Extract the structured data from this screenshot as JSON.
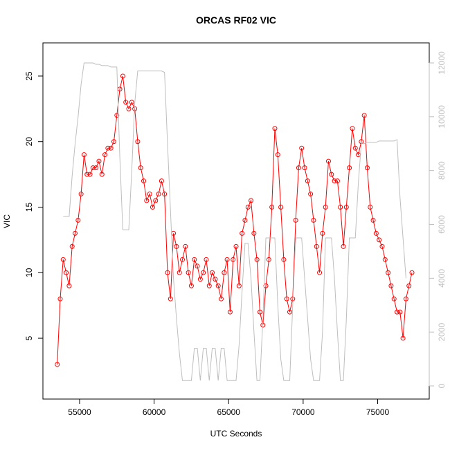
{
  "chart_data": {
    "type": "line",
    "title": "ORCAS RF02 VIC",
    "x_label": "UTC Seconds",
    "y_label": "VIC",
    "x": [
      53500,
      53700,
      53900,
      54100,
      54300,
      54500,
      54700,
      54900,
      55100,
      55300,
      55500,
      55700,
      55900,
      56100,
      56300,
      56500,
      56700,
      56900,
      57100,
      57300,
      57500,
      57700,
      57900,
      58100,
      58300,
      58500,
      58700,
      58900,
      59100,
      59300,
      59500,
      59700,
      59900,
      60100,
      60300,
      60500,
      60700,
      60900,
      61100,
      61300,
      61500,
      61700,
      61900,
      62100,
      62300,
      62500,
      62700,
      62900,
      63100,
      63300,
      63500,
      63700,
      63900,
      64100,
      64300,
      64500,
      64700,
      64900,
      65100,
      65300,
      65500,
      65700,
      65900,
      66100,
      66300,
      66500,
      66700,
      66900,
      67100,
      67300,
      67500,
      67700,
      67900,
      68100,
      68300,
      68500,
      68700,
      68900,
      69100,
      69300,
      69500,
      69700,
      69900,
      70100,
      70300,
      70500,
      70700,
      70900,
      71100,
      71300,
      71500,
      71700,
      71900,
      72100,
      72300,
      72500,
      72700,
      72900,
      73100,
      73300,
      73500,
      73700,
      73900,
      74100,
      74300,
      74500,
      74700,
      74900,
      75100,
      75300,
      75500,
      75700,
      75900,
      76100,
      76300,
      76500,
      76700,
      76900,
      77100,
      77300
    ],
    "series": [
      {
        "color": "#ff0000",
        "axis": "y",
        "markers": true,
        "values": [
          3,
          8,
          11,
          10,
          9,
          12,
          13,
          14,
          16,
          19,
          17.5,
          17.5,
          18,
          18,
          18.5,
          17.5,
          19,
          19.5,
          19.5,
          20,
          22,
          24,
          25,
          23,
          22.5,
          23,
          22.5,
          20,
          18,
          17,
          15.5,
          16,
          15,
          15.5,
          16,
          17,
          16,
          10,
          8,
          13,
          12,
          10,
          11,
          12,
          10,
          9,
          11,
          10.5,
          9.5,
          10,
          11,
          9,
          10,
          9.5,
          9,
          8,
          10,
          11,
          7,
          11,
          12,
          9,
          13,
          14,
          15,
          15.5,
          13,
          11,
          7,
          6,
          9,
          11,
          15,
          21,
          19,
          15,
          11,
          8,
          7,
          8,
          14,
          18,
          19.5,
          18,
          17,
          16,
          14,
          12,
          10,
          13,
          15,
          18.5,
          17.5,
          17,
          17,
          15,
          12,
          15,
          18,
          21,
          19.5,
          19,
          20,
          22,
          18,
          15,
          14,
          13,
          12.5,
          12,
          11,
          10,
          9,
          8,
          7,
          7,
          5,
          8,
          9,
          10
        ]
      },
      {
        "color": "#bebebe",
        "axis": "y2",
        "markers": false,
        "values": [
          null,
          null,
          6300,
          6300,
          6300,
          7800,
          9000,
          10000,
          11200,
          12000,
          12000,
          12000,
          12000,
          11950,
          11950,
          11900,
          11900,
          11900,
          11850,
          11850,
          11850,
          8500,
          5800,
          5800,
          5800,
          8000,
          10500,
          11700,
          11700,
          11700,
          11700,
          11700,
          11700,
          11700,
          11700,
          11700,
          11650,
          9000,
          6500,
          4000,
          2500,
          1200,
          200,
          200,
          200,
          200,
          1400,
          1400,
          200,
          1400,
          1400,
          200,
          1400,
          1400,
          200,
          1400,
          1400,
          200,
          200,
          200,
          200,
          1500,
          3500,
          5300,
          5300,
          4000,
          2000,
          200,
          200,
          2500,
          5500,
          5500,
          5500,
          5500,
          3000,
          1000,
          200,
          200,
          200,
          3000,
          5500,
          5500,
          5500,
          4000,
          2500,
          1000,
          200,
          200,
          200,
          2000,
          5500,
          5500,
          5500,
          4000,
          2000,
          200,
          200,
          2500,
          5500,
          5500,
          5500,
          7500,
          9000,
          9000,
          9050,
          9050,
          9050,
          9050,
          9100,
          9100,
          9100,
          9100,
          9100,
          9100,
          9150,
          7000,
          5500,
          4000,
          null,
          null
        ]
      }
    ],
    "xlim": [
      52540,
      78460
    ],
    "xticks": [
      55000,
      60000,
      65000,
      70000,
      75000
    ],
    "ylim": [
      0.36,
      27.53
    ],
    "yticks": [
      5,
      10,
      15,
      20,
      25
    ],
    "y2lim": [
      -488,
      12745
    ],
    "y2ticks": [
      0,
      2000,
      4000,
      6000,
      8000,
      10000,
      12000
    ],
    "y2tick_color": "#bebebe"
  }
}
